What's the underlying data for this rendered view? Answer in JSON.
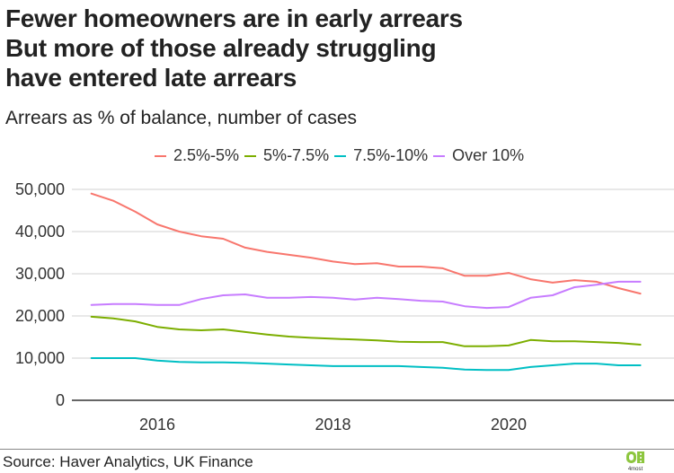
{
  "title_lines": [
    "Fewer homeowners are in early arrears",
    "But more of those already struggling",
    "have entered late arrears"
  ],
  "subtitle": "Arrears as % of balance, number of cases",
  "source": "Source: Haver Analytics, UK Finance",
  "logo_text": "4most",
  "chart_data": {
    "type": "line",
    "title": "Fewer homeowners are in early arrears / But more of those already struggling have entered late arrears",
    "subtitle": "Arrears as % of balance, number of cases",
    "xlabel": "",
    "ylabel": "",
    "x_start": 2015.25,
    "x_step": 0.25,
    "xlim": [
      2015.0,
      2021.75
    ],
    "ylim": [
      0,
      50000
    ],
    "x_ticks": [
      2016,
      2018,
      2020
    ],
    "x_tick_labels": [
      "2016",
      "2018",
      "2020"
    ],
    "y_ticks": [
      0,
      10000,
      20000,
      30000,
      40000,
      50000
    ],
    "y_tick_labels": [
      "0",
      "10,000",
      "20,000",
      "30,000",
      "40,000",
      "50,000"
    ],
    "grid": "horizontal",
    "legend_position": "top",
    "series": [
      {
        "name": "2.5%-5%",
        "color": "#F8766D",
        "values": [
          49000,
          47300,
          44700,
          41700,
          40000,
          38900,
          38300,
          36200,
          35200,
          34500,
          33800,
          32900,
          32300,
          32500,
          31700,
          31700,
          31300,
          29500,
          29500,
          30200,
          28700,
          27900,
          28500,
          28100,
          26600,
          25300
        ]
      },
      {
        "name": "5%-7.5%",
        "color": "#7CAE00",
        "values": [
          19800,
          19400,
          18700,
          17400,
          16800,
          16600,
          16800,
          16200,
          15600,
          15100,
          14800,
          14600,
          14400,
          14200,
          13900,
          13800,
          13800,
          12800,
          12800,
          13000,
          14300,
          14000,
          14000,
          13800,
          13600,
          13200
        ]
      },
      {
        "name": "7.5%-10%",
        "color": "#00BFC4",
        "values": [
          10000,
          10000,
          10000,
          9400,
          9100,
          9000,
          9000,
          8900,
          8700,
          8500,
          8300,
          8100,
          8100,
          8100,
          8100,
          7900,
          7700,
          7300,
          7200,
          7200,
          7900,
          8300,
          8700,
          8700,
          8300,
          8300
        ]
      },
      {
        "name": "Over 10%",
        "color": "#C77CFF",
        "values": [
          22600,
          22800,
          22800,
          22600,
          22600,
          24000,
          24900,
          25100,
          24300,
          24300,
          24500,
          24300,
          23900,
          24300,
          24000,
          23600,
          23400,
          22300,
          21900,
          22100,
          24300,
          24900,
          26800,
          27400,
          28100,
          28100
        ]
      }
    ]
  }
}
